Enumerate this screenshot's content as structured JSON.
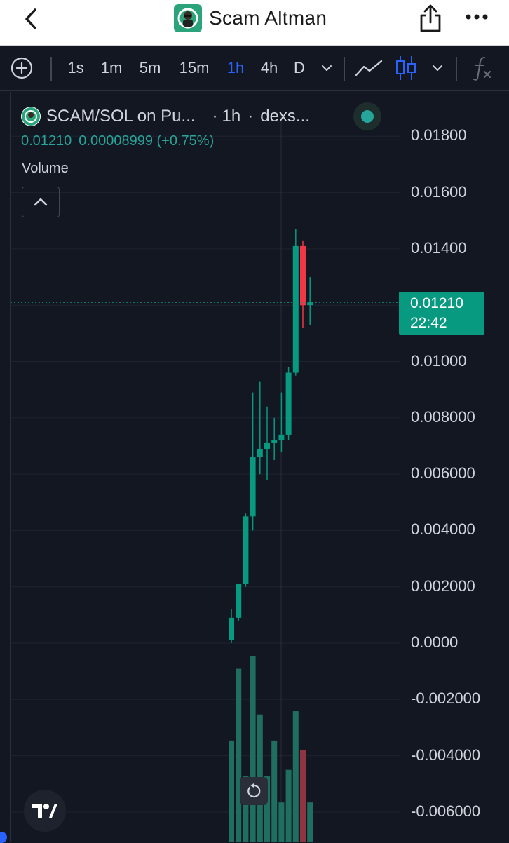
{
  "header": {
    "title": "Scam Altman",
    "back_icon": "chevron-left-icon",
    "share_icon": "share-icon",
    "more_icon": "more-dots-icon",
    "avatar_icon": "app-avatar-icon"
  },
  "toolbar": {
    "add_icon": "plus-circle-icon",
    "intervals": [
      "1s",
      "1m",
      "5m",
      "15m",
      "1h",
      "4h",
      "D"
    ],
    "active_interval": "1h",
    "interval_dropdown_icon": "chevron-down-icon",
    "line_chart_icon": "line-chart-icon",
    "candles_icon": "candlestick-icon",
    "chart_type_dropdown_icon": "chevron-down-icon",
    "indicators_icon": "fx-icon"
  },
  "legend": {
    "symbol": "SCAM/SOL on Pu...",
    "separator": "·",
    "interval": "1h",
    "source": "dexs...",
    "last": "0.01210",
    "change": "0.00008999 (+0.75%)",
    "status": "market-open-dot",
    "volume_label": "Volume",
    "collapse_icon": "chevron-up-icon"
  },
  "price_tag": {
    "price": "0.01210",
    "countdown": "22:42"
  },
  "colors": {
    "background": "#131722",
    "up": "#089981",
    "down": "#f23645",
    "volume_up": "#1f6e60",
    "volume_down": "#8f3440",
    "accent": "#2962ff"
  },
  "chart_data": {
    "type": "candlestick",
    "ylim": [
      -0.0065,
      0.0195
    ],
    "y_ticks": [
      "0.01800",
      "0.01600",
      "0.01400",
      "0.01000",
      "0.008000",
      "0.006000",
      "0.004000",
      "0.002000",
      "0.0000",
      "-0.002000",
      "-0.004000",
      "-0.006000"
    ],
    "y_tick_values": [
      0.018,
      0.016,
      0.014,
      0.01,
      0.008,
      0.006,
      0.004,
      0.002,
      0.0,
      -0.002,
      -0.004,
      -0.006
    ],
    "last_price": 0.0121,
    "candles": [
      {
        "o": 0.0001,
        "h": 0.0012,
        "l": 0.0,
        "c": 0.0009
      },
      {
        "o": 0.0009,
        "h": 0.0021,
        "l": 0.0008,
        "c": 0.0021
      },
      {
        "o": 0.0021,
        "h": 0.0046,
        "l": 0.002,
        "c": 0.0045
      },
      {
        "o": 0.0045,
        "h": 0.0089,
        "l": 0.004,
        "c": 0.0066
      },
      {
        "o": 0.0066,
        "h": 0.0093,
        "l": 0.006,
        "c": 0.0069
      },
      {
        "o": 0.0069,
        "h": 0.0084,
        "l": 0.0058,
        "c": 0.0071
      },
      {
        "o": 0.0071,
        "h": 0.008,
        "l": 0.0065,
        "c": 0.0072
      },
      {
        "o": 0.0072,
        "h": 0.0089,
        "l": 0.0068,
        "c": 0.0074
      },
      {
        "o": 0.0074,
        "h": 0.0098,
        "l": 0.0072,
        "c": 0.0096
      },
      {
        "o": 0.0096,
        "h": 0.0147,
        "l": 0.0095,
        "c": 0.0141
      },
      {
        "o": 0.0141,
        "h": 0.0143,
        "l": 0.0112,
        "c": 0.012
      },
      {
        "o": 0.012,
        "h": 0.013,
        "l": 0.0113,
        "c": 0.0121
      }
    ],
    "volume": [
      0.31,
      0.53,
      0.2,
      0.57,
      0.39,
      0.2,
      0.31,
      0.12,
      0.22,
      0.4,
      0.28,
      0.12
    ],
    "volume_max": 0.57
  }
}
